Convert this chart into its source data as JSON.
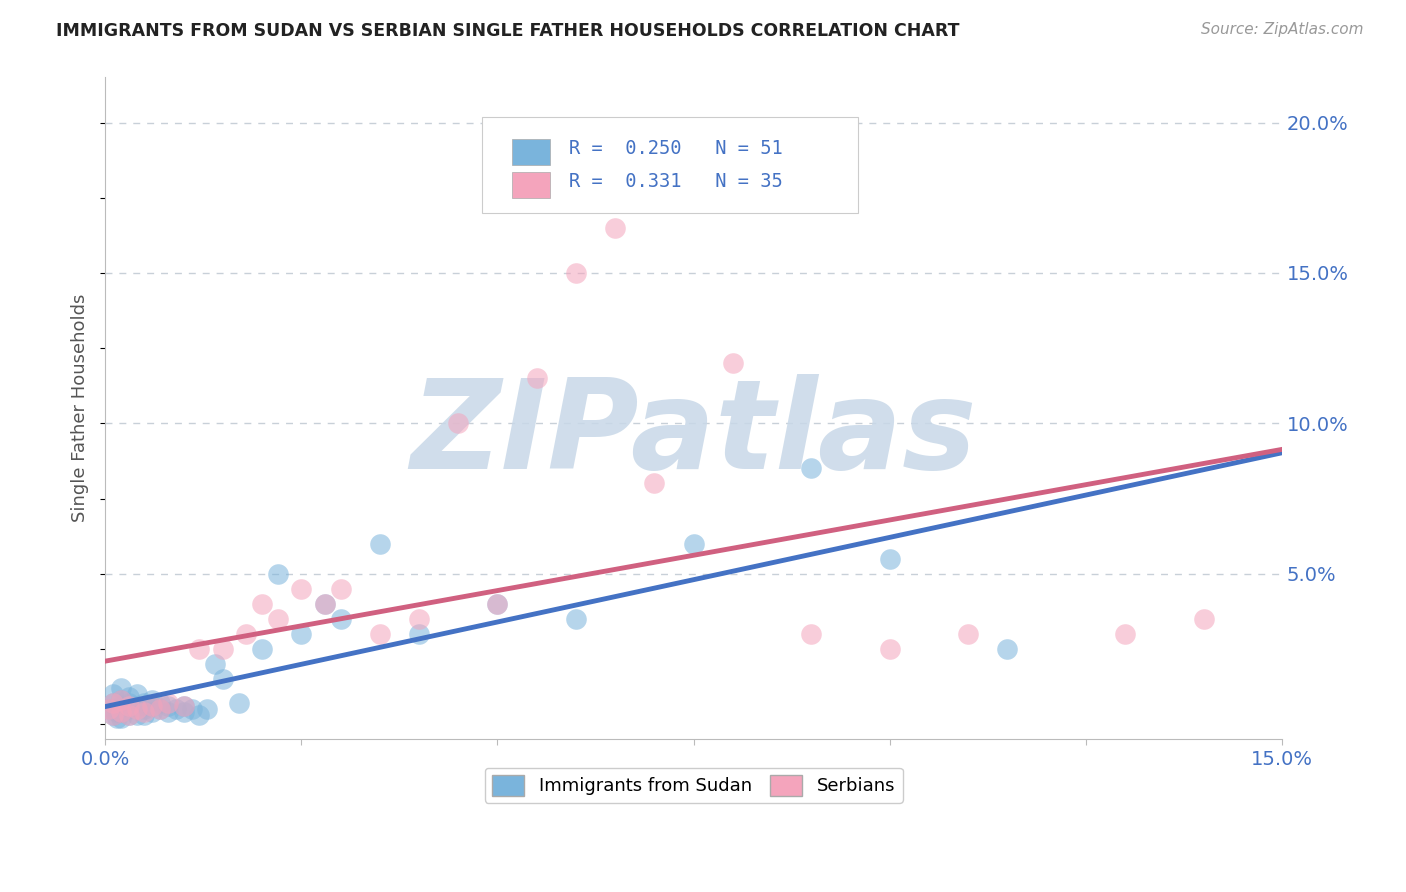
{
  "title": "IMMIGRANTS FROM SUDAN VS SERBIAN SINGLE FATHER HOUSEHOLDS CORRELATION CHART",
  "source": "Source: ZipAtlas.com",
  "ylabel": "Single Father Households",
  "xlim": [
    0.0,
    0.15
  ],
  "ylim": [
    -0.005,
    0.215
  ],
  "ytick_positions_right": [
    0.05,
    0.1,
    0.15,
    0.2
  ],
  "ytick_labels_right": [
    "5.0%",
    "10.0%",
    "15.0%",
    "20.0%"
  ],
  "watermark": "ZIPatlas",
  "watermark_color": "#c8d8e8",
  "sudan_color": "#7ab4dc",
  "serbian_color": "#f4a4bc",
  "sudan_line_color": "#4472c4",
  "serbian_line_color": "#d06080",
  "background_color": "#ffffff",
  "grid_color": "#c8d0d8",
  "sudan_x": [
    0.0005,
    0.001,
    0.001,
    0.001,
    0.001,
    0.0015,
    0.0015,
    0.002,
    0.002,
    0.002,
    0.002,
    0.002,
    0.003,
    0.003,
    0.003,
    0.003,
    0.004,
    0.004,
    0.004,
    0.005,
    0.005,
    0.005,
    0.006,
    0.006,
    0.006,
    0.007,
    0.007,
    0.008,
    0.008,
    0.009,
    0.01,
    0.01,
    0.011,
    0.012,
    0.013,
    0.014,
    0.015,
    0.017,
    0.02,
    0.022,
    0.025,
    0.028,
    0.03,
    0.035,
    0.04,
    0.05,
    0.06,
    0.075,
    0.09,
    0.1,
    0.115
  ],
  "sudan_y": [
    0.005,
    0.003,
    0.005,
    0.007,
    0.01,
    0.002,
    0.004,
    0.002,
    0.004,
    0.006,
    0.008,
    0.012,
    0.003,
    0.005,
    0.007,
    0.009,
    0.003,
    0.006,
    0.01,
    0.003,
    0.005,
    0.007,
    0.004,
    0.006,
    0.008,
    0.005,
    0.007,
    0.004,
    0.006,
    0.005,
    0.004,
    0.006,
    0.005,
    0.003,
    0.005,
    0.02,
    0.015,
    0.007,
    0.025,
    0.05,
    0.03,
    0.04,
    0.035,
    0.06,
    0.03,
    0.04,
    0.035,
    0.06,
    0.085,
    0.055,
    0.025
  ],
  "serbian_x": [
    0.0005,
    0.001,
    0.001,
    0.002,
    0.002,
    0.003,
    0.003,
    0.004,
    0.005,
    0.006,
    0.007,
    0.008,
    0.01,
    0.012,
    0.015,
    0.018,
    0.02,
    0.022,
    0.025,
    0.028,
    0.03,
    0.035,
    0.04,
    0.045,
    0.05,
    0.055,
    0.06,
    0.065,
    0.07,
    0.08,
    0.09,
    0.1,
    0.11,
    0.13,
    0.14
  ],
  "serbian_y": [
    0.005,
    0.003,
    0.007,
    0.004,
    0.008,
    0.003,
    0.006,
    0.005,
    0.004,
    0.006,
    0.005,
    0.007,
    0.006,
    0.025,
    0.025,
    0.03,
    0.04,
    0.035,
    0.045,
    0.04,
    0.045,
    0.03,
    0.035,
    0.1,
    0.04,
    0.115,
    0.15,
    0.165,
    0.08,
    0.12,
    0.03,
    0.025,
    0.03,
    0.03,
    0.035
  ]
}
